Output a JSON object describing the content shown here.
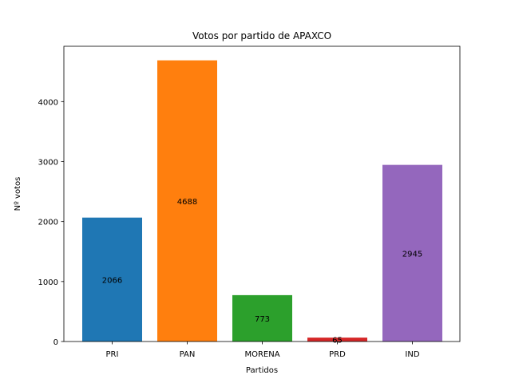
{
  "chart_data": {
    "type": "bar",
    "title": "Votos por partido de APAXCO",
    "xlabel": "Partidos",
    "ylabel": "Nº votos",
    "categories": [
      "PRI",
      "PAN",
      "MORENA",
      "PRD",
      "IND"
    ],
    "values": [
      2066,
      4688,
      773,
      65,
      2945
    ],
    "colors": [
      "#1f77b4",
      "#ff7f0e",
      "#2ca02c",
      "#d62728",
      "#9467bd"
    ],
    "yticks": [
      0,
      1000,
      2000,
      3000,
      4000
    ],
    "ylim": [
      0,
      4922.4
    ],
    "grid": false
  }
}
